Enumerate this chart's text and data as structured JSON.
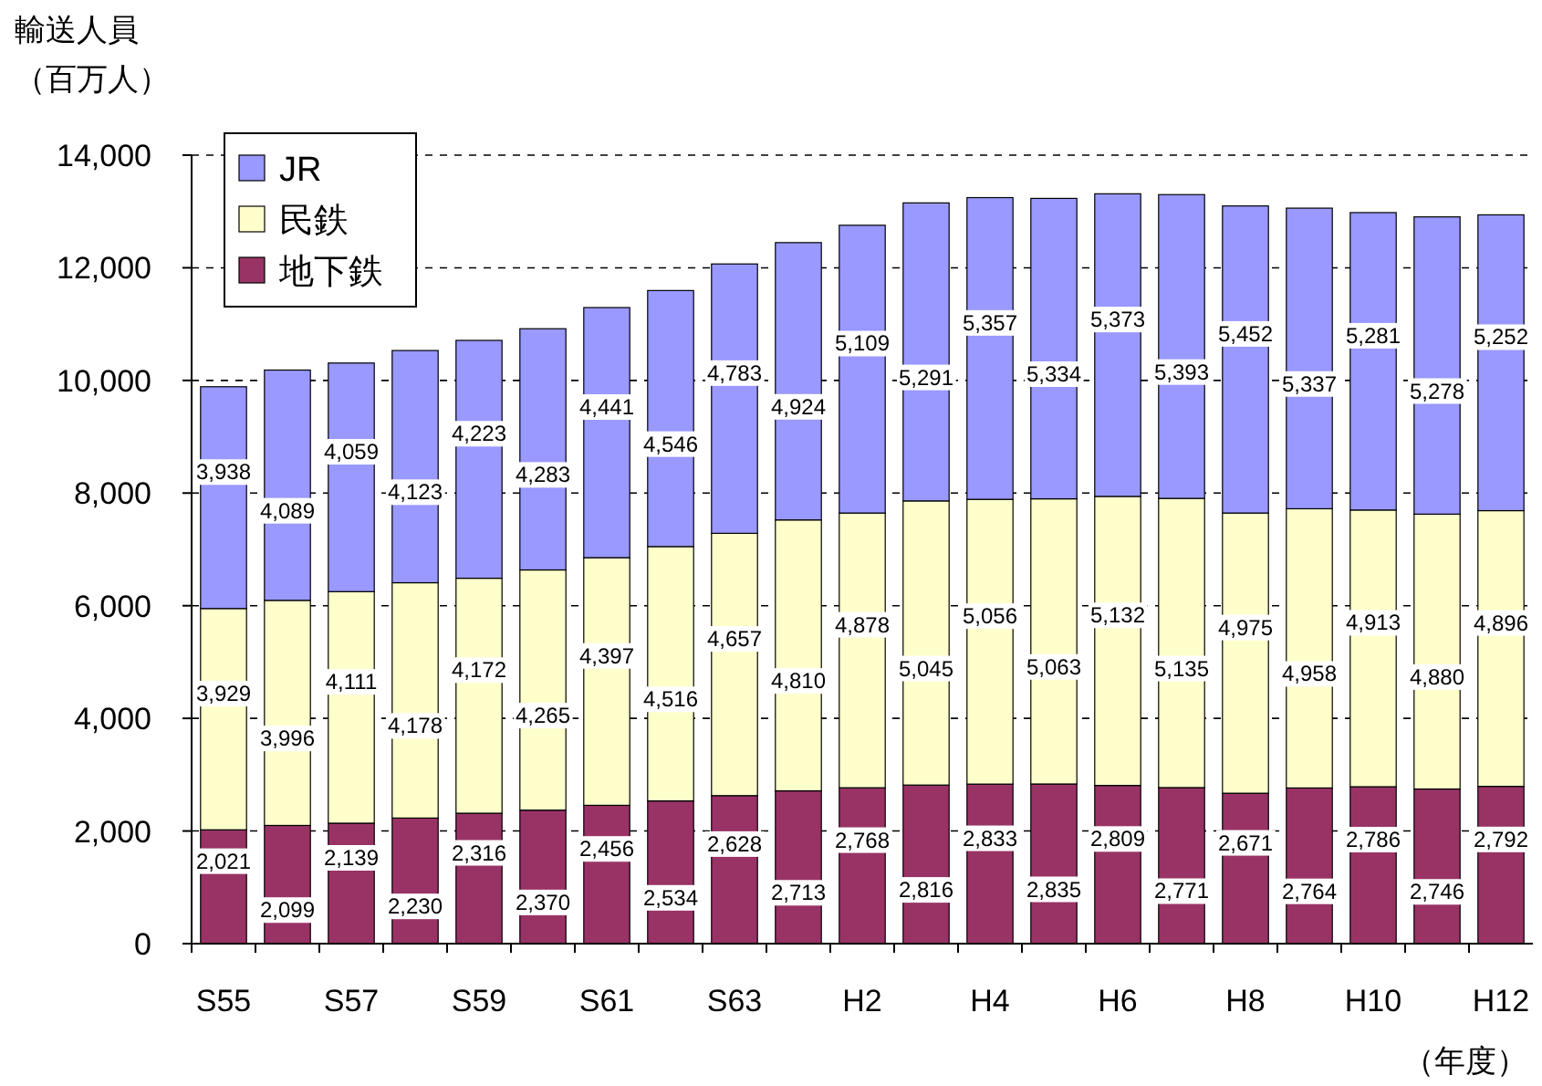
{
  "chart_data": {
    "type": "bar",
    "stacked": true,
    "ylabel": "輸送人員",
    "annotations": [
      "（百万人）"
    ],
    "xlabel": "（年度）",
    "categories": [
      "S55",
      null,
      "S57",
      null,
      "S59",
      null,
      "S61",
      null,
      "S63",
      null,
      "H2",
      null,
      "H4",
      null,
      "H6",
      null,
      "H8",
      null,
      "H10",
      null,
      "H12"
    ],
    "series": [
      {
        "name": "地下鉄",
        "color": "#993366",
        "values": [
          2021,
          2099,
          2139,
          2230,
          2316,
          2370,
          2456,
          2534,
          2628,
          2713,
          2768,
          2816,
          2833,
          2835,
          2809,
          2771,
          2671,
          2764,
          2786,
          2746,
          2792
        ],
        "value_labels": [
          "2,021",
          "2,099",
          "2,139",
          "2,230",
          "2,316",
          "2,370",
          "2,456",
          "2,534",
          "2,628",
          "2,713",
          "2,768",
          "2,816",
          "2,833",
          "2,835",
          "2,809",
          "2,771",
          "2,671",
          "2,764",
          "2,786",
          "2,746",
          "2,792"
        ]
      },
      {
        "name": "民鉄",
        "color": "#ffffcc",
        "values": [
          3929,
          3996,
          4111,
          4178,
          4172,
          4265,
          4397,
          4516,
          4657,
          4810,
          4878,
          5045,
          5056,
          5063,
          5132,
          5135,
          4975,
          4958,
          4913,
          4880,
          4896
        ],
        "value_labels": [
          "3,929",
          "3,996",
          "4,111",
          "4,178",
          "4,172",
          "4,265",
          "4,397",
          "4,516",
          "4,657",
          "4,810",
          "4,878",
          "5,045",
          "5,056",
          "5,063",
          "5,132",
          "5,135",
          "4,975",
          "4,958",
          "4,913",
          "4,880",
          "4,896"
        ]
      },
      {
        "name": "JR",
        "color": "#9999ff",
        "values": [
          3938,
          4089,
          4059,
          4123,
          4223,
          4283,
          4441,
          4546,
          4783,
          4924,
          5109,
          5291,
          5357,
          5334,
          5373,
          5393,
          5452,
          5337,
          5281,
          5278,
          5252
        ],
        "value_labels": [
          "3,938",
          "4,089",
          "4,059",
          "4,123",
          "4,223",
          "4,283",
          "4,441",
          "4,546",
          "4,783",
          "4,924",
          "5,109",
          "5,291",
          "5,357",
          "5,334",
          "5,373",
          "5,393",
          "5,452",
          "5,337",
          "5,281",
          "5,278",
          "5,252"
        ]
      }
    ],
    "ylim": [
      0,
      14000
    ],
    "yticks": [
      0,
      {
        "value": 2000,
        "label": "2,000"
      },
      {
        "value": 4000,
        "label": "4,000"
      },
      {
        "value": 6000,
        "label": "6,000"
      },
      {
        "value": 8000,
        "label": "8,000"
      },
      {
        "value": 10000,
        "label": "10,000"
      },
      {
        "value": 12000,
        "label": "12,000"
      },
      {
        "value": 14000,
        "label": "14,000"
      }
    ],
    "grid": "y",
    "legend": "top left"
  }
}
